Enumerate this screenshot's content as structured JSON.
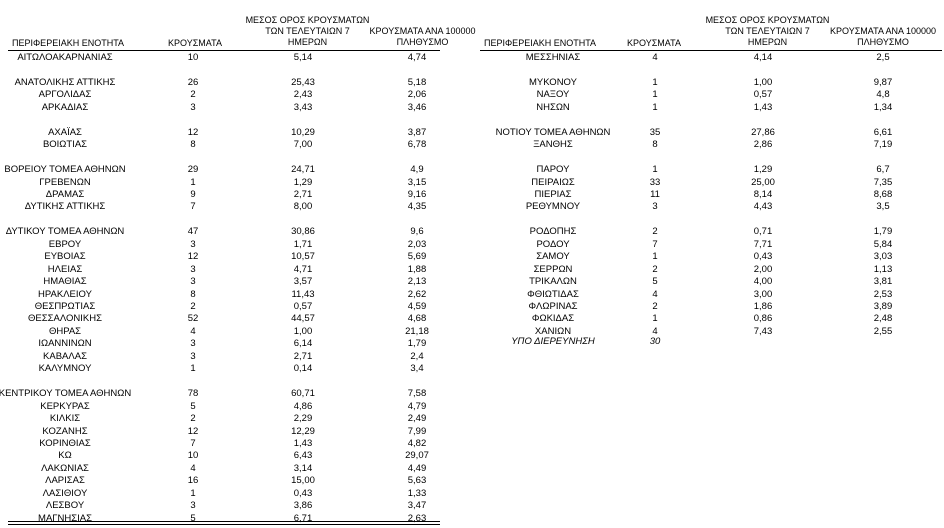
{
  "headers": {
    "region": "ΠΕΡΙΦΕΡΕΙΑΚΗ ΕΝΟΤΗΤΑ",
    "cases": "ΚΡΟΥΣΜΑΤΑ",
    "avg_line1": "ΜΕΣΟΣ ΟΡΟΣ ΚΡΟΥΣΜΑΤΩΝ",
    "avg_line2": "ΤΩΝ ΤΕΛΕΥΤΑΙΩΝ 7",
    "avg_line3": "ΗΜΕΡΩΝ",
    "per100k_line1": "ΚΡΟΥΣΜΑΤΑ ΑΝΑ 100000",
    "per100k_line2": "ΠΛΗΘΥΣΜΟ"
  },
  "left_rows": [
    [
      "ΑΙΤΩΛΟΑΚΑΡΝΑΝΙΑΣ",
      "10",
      "5,14",
      "4,74"
    ],
    null,
    [
      "ΑΝΑΤΟΛΙΚΗΣ ΑΤΤΙΚΗΣ",
      "26",
      "25,43",
      "5,18"
    ],
    [
      "ΑΡΓΟΛΙΔΑΣ",
      "2",
      "2,43",
      "2,06"
    ],
    [
      "ΑΡΚΑΔΙΑΣ",
      "3",
      "3,43",
      "3,46"
    ],
    null,
    [
      "ΑΧΑΪΑΣ",
      "12",
      "10,29",
      "3,87"
    ],
    [
      "ΒΟΙΩΤΙΑΣ",
      "8",
      "7,00",
      "6,78"
    ],
    null,
    [
      "ΒΟΡΕΙΟΥ ΤΟΜΕΑ ΑΘΗΝΩΝ",
      "29",
      "24,71",
      "4,9"
    ],
    [
      "ΓΡΕΒΕΝΩΝ",
      "1",
      "1,29",
      "3,15"
    ],
    [
      "ΔΡΑΜΑΣ",
      "9",
      "2,71",
      "9,16"
    ],
    [
      "ΔΥΤΙΚΗΣ ΑΤΤΙΚΗΣ",
      "7",
      "8,00",
      "4,35"
    ],
    null,
    [
      "ΔΥΤΙΚΟΥ ΤΟΜΕΑ ΑΘΗΝΩΝ",
      "47",
      "30,86",
      "9,6"
    ],
    [
      "ΕΒΡΟΥ",
      "3",
      "1,71",
      "2,03"
    ],
    [
      "ΕΥΒΟΙΑΣ",
      "12",
      "10,57",
      "5,69"
    ],
    [
      "ΗΛΕΙΑΣ",
      "3",
      "4,71",
      "1,88"
    ],
    [
      "ΗΜΑΘΙΑΣ",
      "3",
      "3,57",
      "2,13"
    ],
    [
      "ΗΡΑΚΛΕΙΟΥ",
      "8",
      "11,43",
      "2,62"
    ],
    [
      "ΘΕΣΠΡΩΤΙΑΣ",
      "2",
      "0,57",
      "4,59"
    ],
    [
      "ΘΕΣΣΑΛΟΝΙΚΗΣ",
      "52",
      "44,57",
      "4,68"
    ],
    [
      "ΘΗΡΑΣ",
      "4",
      "1,00",
      "21,18"
    ],
    [
      "ΙΩΑΝΝΙΝΩΝ",
      "3",
      "6,14",
      "1,79"
    ],
    [
      "ΚΑΒΑΛΑΣ",
      "3",
      "2,71",
      "2,4"
    ],
    [
      "ΚΑΛΥΜΝΟΥ",
      "1",
      "0,14",
      "3,4"
    ],
    null,
    [
      "ΚΕΝΤΡΙΚΟΥ ΤΟΜΕΑ ΑΘΗΝΩΝ",
      "78",
      "60,71",
      "7,58"
    ],
    [
      "ΚΕΡΚΥΡΑΣ",
      "5",
      "4,86",
      "4,79"
    ],
    [
      "ΚΙΛΚΙΣ",
      "2",
      "2,29",
      "2,49"
    ],
    [
      "ΚΟΖΑΝΗΣ",
      "12",
      "12,29",
      "7,99"
    ],
    [
      "ΚΟΡΙΝΘΙΑΣ",
      "7",
      "1,43",
      "4,82"
    ],
    [
      "ΚΩ",
      "10",
      "6,43",
      "29,07"
    ],
    [
      "ΛΑΚΩΝΙΑΣ",
      "4",
      "3,14",
      "4,49"
    ],
    [
      "ΛΑΡΙΣΑΣ",
      "16",
      "15,00",
      "5,63"
    ],
    [
      "ΛΑΣΙΘΙΟΥ",
      "1",
      "0,43",
      "1,33"
    ],
    [
      "ΛΕΣΒΟΥ",
      "3",
      "3,86",
      "3,47"
    ],
    [
      "ΜΑΓΝΗΣΙΑΣ",
      "5",
      "6,71",
      "2,63"
    ]
  ],
  "right_rows": [
    [
      "ΜΕΣΣΗΝΙΑΣ",
      "4",
      "4,14",
      "2,5"
    ],
    null,
    [
      "ΜΥΚΟΝΟΥ",
      "1",
      "1,00",
      "9,87"
    ],
    [
      "ΝΑΞΟΥ",
      "1",
      "0,57",
      "4,8"
    ],
    [
      "ΝΗΣΩΝ",
      "1",
      "1,43",
      "1,34"
    ],
    null,
    [
      "ΝΟΤΙΟΥ ΤΟΜΕΑ ΑΘΗΝΩΝ",
      "35",
      "27,86",
      "6,61"
    ],
    [
      "ΞΑΝΘΗΣ",
      "8",
      "2,86",
      "7,19"
    ],
    null,
    [
      "ΠΑΡΟΥ",
      "1",
      "1,29",
      "6,7"
    ],
    [
      "ΠΕΙΡΑΙΩΣ",
      "33",
      "25,00",
      "7,35"
    ],
    [
      "ΠΙΕΡΙΑΣ",
      "11",
      "8,14",
      "8,68"
    ],
    [
      "ΡΕΘΥΜΝΟΥ",
      "3",
      "4,43",
      "3,5"
    ],
    null,
    [
      "ΡΟΔΟΠΗΣ",
      "2",
      "0,71",
      "1,79"
    ],
    [
      "ΡΟΔΟΥ",
      "7",
      "7,71",
      "5,84"
    ],
    [
      "ΣΑΜΟΥ",
      "1",
      "0,43",
      "3,03"
    ],
    [
      "ΣΕΡΡΩΝ",
      "2",
      "2,00",
      "1,13"
    ],
    [
      "ΤΡΙΚΑΛΩΝ",
      "5",
      "4,00",
      "3,81"
    ],
    [
      "ΦΘΙΩΤΙΔΑΣ",
      "4",
      "3,00",
      "2,53"
    ],
    [
      "ΦΛΩΡΙΝΑΣ",
      "2",
      "1,86",
      "3,89"
    ],
    [
      "ΦΩΚΙΔΑΣ",
      "1",
      "0,86",
      "2,48"
    ],
    [
      "ΧΑΝΙΩΝ",
      "4",
      "7,43",
      "2,55"
    ]
  ],
  "note": {
    "label": "ΥΠΟ ΔΙΕΡΕΥΝΗΣΗ",
    "cases": "30"
  }
}
